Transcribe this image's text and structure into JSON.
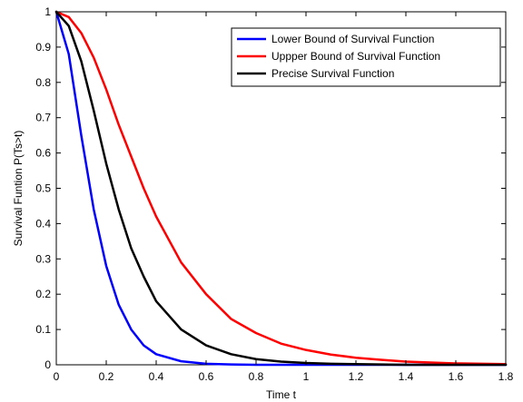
{
  "chart_data": {
    "type": "line",
    "title": "",
    "xlabel": "Time t",
    "ylabel": "Survival Funtion P(Ts>t)",
    "xlim": [
      0,
      1.8
    ],
    "ylim": [
      0,
      1
    ],
    "xticks": [
      0,
      0.2,
      0.4,
      0.6,
      0.8,
      1,
      1.2,
      1.4,
      1.6,
      1.8
    ],
    "xtick_labels": [
      "0",
      "0.2",
      "0.4",
      "0.6",
      "0.8",
      "1",
      "1.2",
      "1.4",
      "1.6",
      "1.8"
    ],
    "yticks": [
      0,
      0.1,
      0.2,
      0.3,
      0.4,
      0.5,
      0.6,
      0.7,
      0.8,
      0.9,
      1
    ],
    "ytick_labels": [
      "0",
      "0.1",
      "0.2",
      "0.3",
      "0.4",
      "0.5",
      "0.6",
      "0.7",
      "0.8",
      "0.9",
      "1"
    ],
    "grid": false,
    "legend_position": "top-right",
    "x": [
      0,
      0.05,
      0.1,
      0.15,
      0.2,
      0.25,
      0.3,
      0.35,
      0.4,
      0.5,
      0.6,
      0.7,
      0.8,
      0.9,
      1.0,
      1.1,
      1.2,
      1.3,
      1.4,
      1.6,
      1.8
    ],
    "series": [
      {
        "name": "Lower Bound of Survival Function",
        "color": "#0000ff",
        "values": [
          1.0,
          0.88,
          0.65,
          0.44,
          0.28,
          0.17,
          0.1,
          0.055,
          0.03,
          0.01,
          0.003,
          0.001,
          0.0,
          0.0,
          0.0,
          0.0,
          0.0,
          0.0,
          0.0,
          0.0,
          0.0
        ]
      },
      {
        "name": "Uppper Bound of Survival Function",
        "color": "#ff0000",
        "values": [
          1.0,
          0.985,
          0.94,
          0.87,
          0.78,
          0.68,
          0.59,
          0.5,
          0.42,
          0.29,
          0.2,
          0.13,
          0.09,
          0.06,
          0.042,
          0.029,
          0.02,
          0.014,
          0.009,
          0.004,
          0.002
        ]
      },
      {
        "name": "Precise Survival Function",
        "color": "#000000",
        "values": [
          1.0,
          0.96,
          0.86,
          0.72,
          0.57,
          0.44,
          0.33,
          0.25,
          0.18,
          0.1,
          0.055,
          0.03,
          0.016,
          0.009,
          0.005,
          0.003,
          0.002,
          0.001,
          0.0,
          0.0,
          0.0
        ]
      }
    ]
  }
}
